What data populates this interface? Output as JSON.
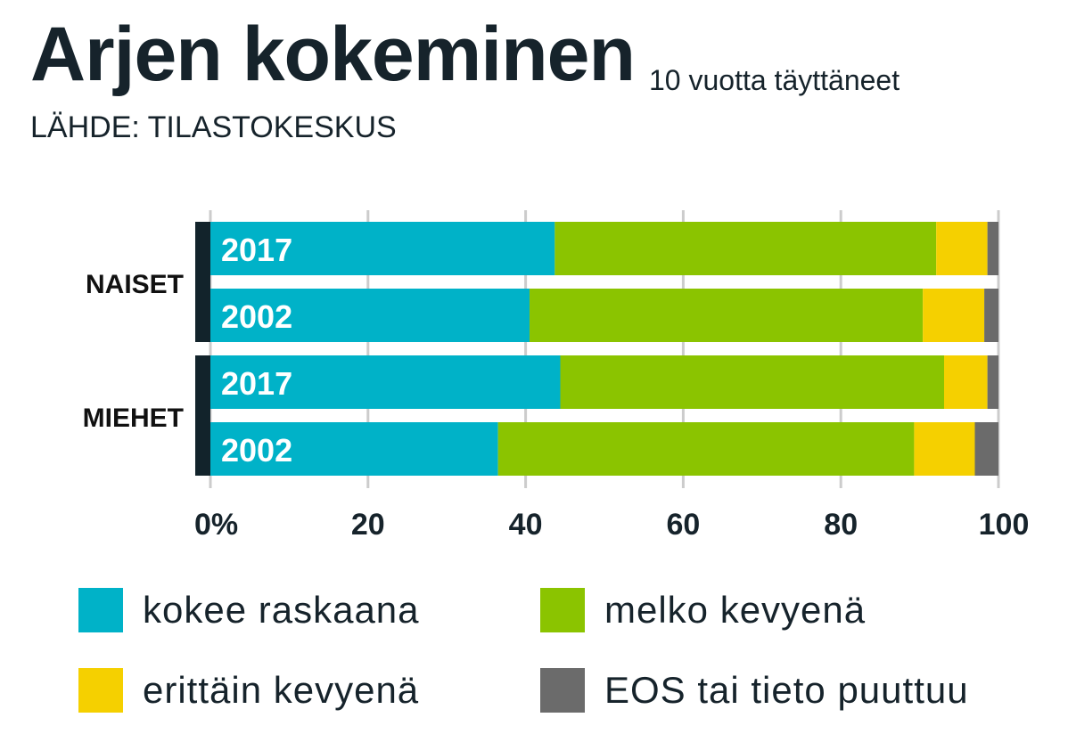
{
  "header": {
    "title": "Arjen kokeminen",
    "subtitle": "10 vuotta täyttäneet",
    "source": "LÄHDE: TILASTOKESKUS"
  },
  "legend": [
    {
      "label": "kokee raskaana",
      "color": "#00b2c8"
    },
    {
      "label": "melko kevyenä",
      "color": "#8bc400"
    },
    {
      "label": "erittäin kevyenä",
      "color": "#f5d000"
    },
    {
      "label": "EOS tai tieto puuttuu",
      "color": "#6b6b6b"
    }
  ],
  "chart_data": {
    "type": "bar",
    "orientation": "horizontal",
    "stacked": true,
    "title": "Arjen kokeminen",
    "subtitle": "10 vuotta täyttäneet",
    "xlim": [
      0,
      100
    ],
    "xticks": [
      "0%",
      "20",
      "40",
      "60",
      "80",
      "100"
    ],
    "grid": true,
    "groups": [
      "NAISET",
      "MIEHET"
    ],
    "categories": [
      "2017",
      "2002",
      "2017",
      "2002"
    ],
    "category_groups": [
      "NAISET",
      "NAISET",
      "MIEHET",
      "MIEHET"
    ],
    "series": [
      {
        "name": "kokee raskaana",
        "color": "#00b2c8",
        "values": [
          43.7,
          40.5,
          44.4,
          36.5
        ]
      },
      {
        "name": "melko kevyenä",
        "color": "#8bc400",
        "values": [
          48.4,
          49.9,
          48.7,
          52.8
        ]
      },
      {
        "name": "erittäin kevyenä",
        "color": "#f5d000",
        "values": [
          6.5,
          7.8,
          5.5,
          7.7
        ]
      },
      {
        "name": "EOS tai tieto puuttuu",
        "color": "#6b6b6b",
        "values": [
          1.4,
          1.8,
          1.4,
          3.0
        ]
      }
    ]
  }
}
